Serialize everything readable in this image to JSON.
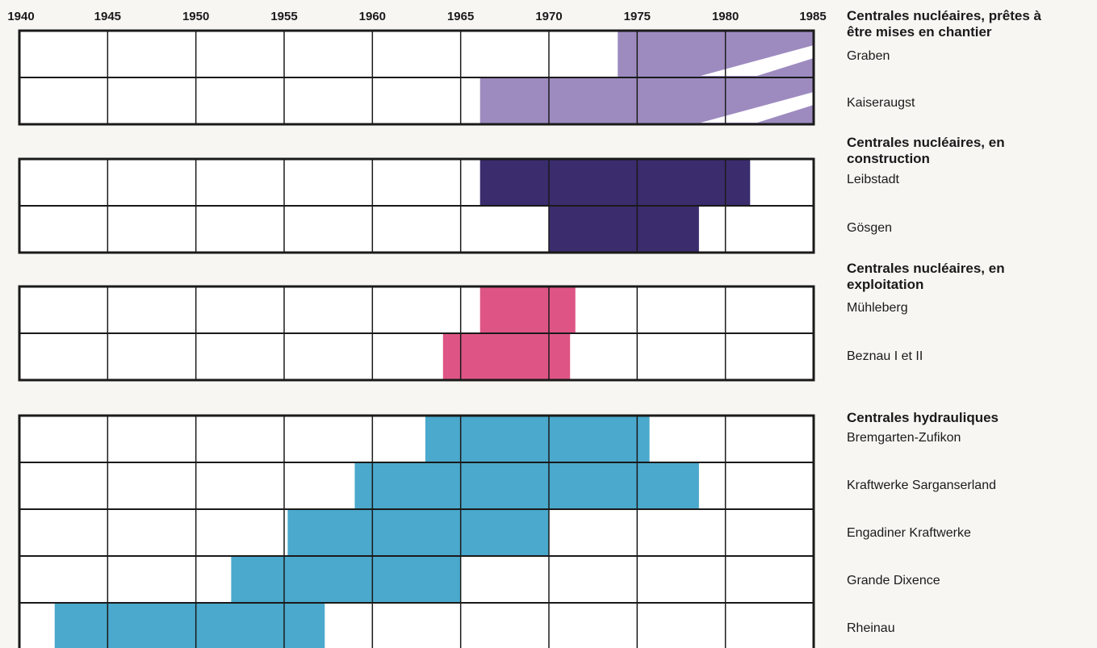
{
  "chart_data": {
    "type": "gantt",
    "x_axis": {
      "range": [
        1940,
        1985
      ],
      "tick_labels": [
        "1940",
        "1945",
        "1950",
        "1955",
        "1960",
        "1965",
        "1970",
        "1975",
        "1980",
        "1985"
      ]
    },
    "grid": true,
    "colors": {
      "pretes": "#9d8bc0",
      "construction": "#3b2c6e",
      "exploitation": "#de5585",
      "hydrauliques": "#4aa9cc"
    },
    "groups": [
      {
        "key": "pretes",
        "title": "Centrales nucléaires, prêtes à être mises en chantier",
        "title_lines": [
          "Centrales nucléaires, prêtes à",
          "être mises en chantier"
        ],
        "items": [
          {
            "name": "Graben",
            "start": 1973.9,
            "end": 1985
          },
          {
            "name": "Kaiseraugst",
            "start": 1966.1,
            "end": 1985
          }
        ]
      },
      {
        "key": "construction",
        "title": "Centrales nucléaires, en construction",
        "title_lines": [
          "Centrales nucléaires, en",
          "construction"
        ],
        "items": [
          {
            "name": "Leibstadt",
            "start": 1966.1,
            "end": 1981.4
          },
          {
            "name": "Gösgen",
            "start": 1970,
            "end": 1978.5
          }
        ]
      },
      {
        "key": "exploitation",
        "title": "Centrales nucléaires, en exploitation",
        "title_lines": [
          "Centrales nucléaires, en",
          "exploitation"
        ],
        "items": [
          {
            "name": "Mühleberg",
            "start": 1966.1,
            "end": 1971.5
          },
          {
            "name": "Beznau I et II",
            "start": 1964,
            "end": 1971.2
          }
        ]
      },
      {
        "key": "hydrauliques",
        "title": "Centrales hydrauliques",
        "title_lines": [
          "Centrales hydrauliques"
        ],
        "items": [
          {
            "name": "Bremgarten-Zufikon",
            "start": 1963,
            "end": 1975.7
          },
          {
            "name": "Kraftwerke Sarganserland",
            "start": 1959,
            "end": 1978.5
          },
          {
            "name": "Engadiner Kraftwerke",
            "start": 1955.2,
            "end": 1970
          },
          {
            "name": "Grande Dixence",
            "start": 1952,
            "end": 1965
          },
          {
            "name": "Rheinau",
            "start": 1942,
            "end": 1957.3
          }
        ]
      }
    ]
  }
}
